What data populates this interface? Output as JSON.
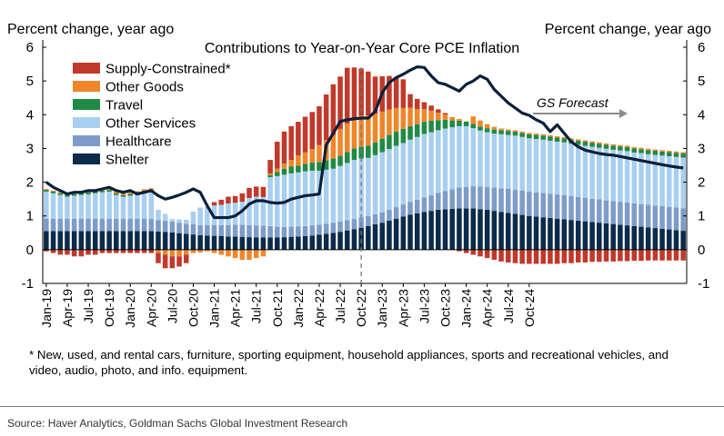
{
  "chart_data": {
    "type": "bar",
    "stacked": true,
    "title": "Contributions to Year-on-Year Core PCE Inflation",
    "left_axis_label": "Percent change, year ago",
    "right_axis_label": "Percent change, year ago",
    "ylim": [
      -1,
      6
    ],
    "yticks": [
      -1,
      0,
      1,
      2,
      3,
      4,
      5,
      6
    ],
    "x_tick_labels": [
      "Jan-19",
      "Apr-19",
      "Jul-19",
      "Oct-19",
      "Jan-20",
      "Apr-20",
      "Jul-20",
      "Oct-20",
      "Jan-21",
      "Apr-21",
      "Jul-21",
      "Oct-21",
      "Jan-22",
      "Apr-22",
      "Jul-22",
      "Oct-22",
      "Jan-23",
      "Apr-23",
      "Jul-23",
      "Oct-23",
      "Jan-24",
      "Apr-24",
      "Jul-24",
      "Oct-24"
    ],
    "forecast_start": "Oct-22",
    "annotation": "GS Forecast",
    "legend_placement": "top-left",
    "series": [
      {
        "name": "Shelter",
        "color": "#0c2a4a",
        "values": [
          0.55,
          0.55,
          0.55,
          0.55,
          0.55,
          0.55,
          0.55,
          0.55,
          0.55,
          0.55,
          0.55,
          0.55,
          0.55,
          0.55,
          0.55,
          0.55,
          0.54,
          0.53,
          0.51,
          0.49,
          0.47,
          0.45,
          0.43,
          0.42,
          0.41,
          0.4,
          0.39,
          0.39,
          0.38,
          0.37,
          0.36,
          0.36,
          0.36,
          0.36,
          0.37,
          0.38,
          0.39,
          0.4,
          0.42,
          0.44,
          0.47,
          0.5,
          0.53,
          0.57,
          0.61,
          0.65,
          0.7,
          0.75,
          0.8,
          0.86,
          0.92,
          0.98,
          1.04,
          1.08,
          1.12,
          1.15,
          1.18,
          1.2,
          1.21,
          1.22,
          1.22,
          1.22,
          1.2,
          1.18,
          1.15,
          1.12,
          1.09,
          1.06,
          1.03,
          1.0,
          0.98,
          0.96,
          0.94,
          0.92,
          0.9,
          0.88,
          0.86,
          0.84,
          0.82,
          0.8,
          0.78,
          0.76,
          0.74,
          0.72,
          0.7,
          0.68,
          0.66,
          0.64,
          0.62,
          0.6,
          0.58,
          0.56
        ]
      },
      {
        "name": "Healthcare",
        "color": "#7d9cc9",
        "values": [
          0.37,
          0.37,
          0.37,
          0.37,
          0.37,
          0.37,
          0.37,
          0.37,
          0.37,
          0.37,
          0.37,
          0.37,
          0.37,
          0.37,
          0.37,
          0.36,
          0.34,
          0.33,
          0.32,
          0.31,
          0.3,
          0.3,
          0.3,
          0.31,
          0.32,
          0.33,
          0.34,
          0.35,
          0.36,
          0.36,
          0.36,
          0.35,
          0.34,
          0.32,
          0.3,
          0.3,
          0.3,
          0.3,
          0.3,
          0.3,
          0.3,
          0.3,
          0.3,
          0.3,
          0.3,
          0.3,
          0.3,
          0.3,
          0.31,
          0.32,
          0.34,
          0.36,
          0.38,
          0.4,
          0.43,
          0.46,
          0.5,
          0.54,
          0.58,
          0.62,
          0.64,
          0.66,
          0.67,
          0.68,
          0.69,
          0.7,
          0.71,
          0.72,
          0.72,
          0.72,
          0.72,
          0.72,
          0.72,
          0.72,
          0.72,
          0.71,
          0.7,
          0.7,
          0.69,
          0.69,
          0.68,
          0.68,
          0.68,
          0.68,
          0.67,
          0.67,
          0.67,
          0.67,
          0.67,
          0.67,
          0.67,
          0.67
        ]
      },
      {
        "name": "Other Services",
        "color": "#a9cff0",
        "values": [
          0.8,
          0.75,
          0.7,
          0.65,
          0.68,
          0.7,
          0.72,
          0.75,
          0.78,
          0.8,
          0.7,
          0.65,
          0.68,
          0.72,
          0.78,
          0.82,
          0.3,
          0.2,
          0.08,
          0.1,
          0.12,
          0.38,
          0.52,
          0.55,
          0.58,
          0.6,
          0.64,
          0.65,
          0.68,
          0.8,
          0.85,
          0.85,
          1.45,
          1.5,
          1.55,
          1.58,
          1.6,
          1.62,
          1.62,
          1.6,
          1.6,
          1.6,
          1.65,
          1.7,
          1.75,
          1.75,
          1.72,
          1.75,
          1.78,
          1.8,
          1.82,
          1.82,
          1.84,
          1.86,
          1.88,
          1.87,
          1.86,
          1.85,
          1.84,
          1.82,
          1.8,
          1.72,
          1.66,
          1.62,
          1.6,
          1.6,
          1.6,
          1.6,
          1.59,
          1.58,
          1.58,
          1.58,
          1.57,
          1.56,
          1.56,
          1.55,
          1.55,
          1.54,
          1.54,
          1.53,
          1.53,
          1.52,
          1.52,
          1.52,
          1.51,
          1.51,
          1.5,
          1.5,
          1.5,
          1.5,
          1.5,
          1.5
        ]
      },
      {
        "name": "Travel",
        "color": "#1f8a45",
        "values": [
          0.05,
          0.05,
          0.05,
          0.05,
          0.05,
          0.05,
          0.05,
          0.05,
          0.05,
          0.05,
          0.05,
          0.05,
          0.05,
          0.05,
          0.05,
          0.05,
          0,
          0,
          0,
          0,
          0,
          0,
          0,
          0,
          0,
          0,
          0,
          0,
          0,
          0,
          0,
          0,
          0.06,
          0.12,
          0.18,
          0.2,
          0.2,
          0.22,
          0.24,
          0.26,
          0.28,
          0.3,
          0.3,
          0.32,
          0.34,
          0.35,
          0.36,
          0.38,
          0.4,
          0.42,
          0.42,
          0.42,
          0.4,
          0.38,
          0.36,
          0.34,
          0.3,
          0.26,
          0.2,
          0.16,
          0.14,
          0.13,
          0.12,
          0.12,
          0.12,
          0.12,
          0.12,
          0.12,
          0.12,
          0.12,
          0.12,
          0.12,
          0.12,
          0.12,
          0.12,
          0.12,
          0.12,
          0.12,
          0.12,
          0.12,
          0.12,
          0.12,
          0.12,
          0.12,
          0.12,
          0.12,
          0.12,
          0.12,
          0.12,
          0.12,
          0.12,
          0.12
        ]
      },
      {
        "name": "Other Goods",
        "color": "#f0862a",
        "values": [
          0.03,
          0.03,
          0.04,
          0.05,
          0.05,
          0.05,
          0.05,
          0.05,
          0.05,
          0.05,
          0.05,
          0.05,
          0.04,
          0.04,
          0.04,
          0.04,
          -0.1,
          -0.15,
          -0.2,
          -0.2,
          -0.15,
          -0.1,
          -0.08,
          -0.05,
          -0.1,
          -0.15,
          -0.2,
          -0.25,
          -0.3,
          -0.3,
          -0.25,
          -0.2,
          0.05,
          0.1,
          0.15,
          0.2,
          0.3,
          0.35,
          0.4,
          0.5,
          0.6,
          0.7,
          0.8,
          0.85,
          0.9,
          0.92,
          0.9,
          0.85,
          0.8,
          0.75,
          0.7,
          0.62,
          0.55,
          0.45,
          0.38,
          0.3,
          0.22,
          0.15,
          0.1,
          0.05,
          0,
          0.22,
          0.18,
          0.12,
          0.08,
          0.05,
          0.04,
          0.04,
          0.04,
          0.04,
          0.04,
          0.04,
          0.04,
          0.04,
          0.04,
          0.04,
          0.04,
          0.04,
          0.04,
          0.04,
          0.04,
          0.04,
          0.04,
          0.04,
          0.04,
          0.04,
          0.04,
          0.04,
          0.04,
          0.04,
          0.04,
          0.04
        ]
      },
      {
        "name": "Supply-Constrained*",
        "color": "#c0392b",
        "values": [
          -0.05,
          -0.1,
          -0.15,
          -0.15,
          -0.2,
          -0.2,
          -0.15,
          -0.15,
          -0.1,
          -0.1,
          -0.1,
          -0.1,
          -0.1,
          -0.1,
          -0.1,
          -0.1,
          -0.3,
          -0.4,
          -0.35,
          -0.3,
          -0.25,
          0,
          0,
          0,
          0.1,
          0.15,
          0.2,
          0.2,
          0.25,
          0.3,
          0.3,
          0.3,
          0.4,
          0.8,
          0.95,
          1.0,
          1.0,
          1.05,
          1.1,
          1.15,
          1.35,
          1.5,
          1.55,
          1.65,
          1.5,
          1.4,
          1.3,
          1.1,
          1.05,
          1.0,
          0.9,
          0.85,
          0.4,
          0.3,
          0.2,
          0.15,
          0.1,
          0.05,
          0,
          -0.05,
          -0.1,
          -0.15,
          -0.2,
          -0.25,
          -0.3,
          -0.35,
          -0.38,
          -0.4,
          -0.42,
          -0.42,
          -0.42,
          -0.42,
          -0.42,
          -0.42,
          -0.4,
          -0.4,
          -0.38,
          -0.38,
          -0.36,
          -0.36,
          -0.35,
          -0.35,
          -0.34,
          -0.34,
          -0.33,
          -0.33,
          -0.32,
          -0.32,
          -0.32,
          -0.32,
          -0.32,
          -0.32
        ]
      }
    ],
    "total_line": {
      "name": "Core PCE",
      "color": "#0b1f3a",
      "values": [
        2.0,
        1.85,
        1.75,
        1.65,
        1.7,
        1.7,
        1.75,
        1.75,
        1.8,
        1.85,
        1.75,
        1.7,
        1.75,
        1.65,
        1.7,
        1.75,
        1.6,
        1.5,
        1.55,
        1.62,
        1.7,
        1.8,
        1.7,
        1.3,
        0.95,
        0.95,
        0.95,
        1.0,
        1.15,
        1.35,
        1.45,
        1.45,
        1.4,
        1.38,
        1.4,
        1.5,
        1.55,
        1.6,
        1.62,
        1.65,
        3.1,
        3.45,
        3.8,
        3.85,
        3.88,
        3.9,
        3.9,
        4.1,
        4.65,
        4.95,
        5.1,
        5.2,
        5.32,
        5.42,
        5.4,
        5.15,
        4.95,
        4.9,
        4.8,
        4.7,
        4.9,
        5.0,
        5.15,
        5.05,
        4.75,
        4.55,
        4.35,
        4.2,
        4.05,
        3.98,
        3.85,
        3.75,
        3.5,
        3.7,
        3.45,
        3.2,
        3.05,
        2.95,
        2.9,
        2.85,
        2.82,
        2.8,
        2.76,
        2.72,
        2.68,
        2.64,
        2.6,
        2.56,
        2.52,
        2.48,
        2.45,
        2.42
      ]
    }
  },
  "footnote": "* New, used, and rental cars, furniture, sporting equipment, household appliances, sports and recreational vehicles, and video, audio, photo, and info. equipment.",
  "source": "Source: Haver Analytics, Goldman Sachs Global Investment Research"
}
